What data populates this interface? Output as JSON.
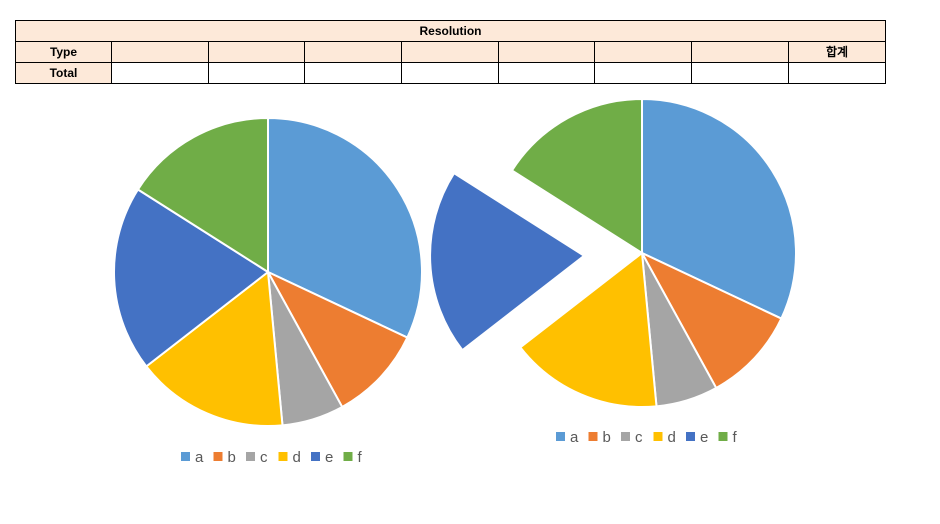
{
  "sheet": {
    "title": "Resolution",
    "type_label": "Type",
    "total_label": "Total",
    "sum_label": "합계"
  },
  "chart_data": [
    {
      "type": "pie",
      "categories": [
        "a",
        "b",
        "c",
        "d",
        "e",
        "f"
      ],
      "values": [
        32,
        10,
        6.5,
        16,
        19.5,
        16
      ],
      "colors": [
        "#5b9bd5",
        "#ed7d31",
        "#a5a5a5",
        "#ffc000",
        "#4472c4",
        "#70ad47"
      ],
      "legend": "bottom",
      "exploded": []
    },
    {
      "type": "pie",
      "categories": [
        "a",
        "b",
        "c",
        "d",
        "e",
        "f"
      ],
      "values": [
        32,
        10,
        6.5,
        16,
        19.5,
        16
      ],
      "colors": [
        "#5b9bd5",
        "#ed7d31",
        "#a5a5a5",
        "#ffc000",
        "#4472c4",
        "#70ad47"
      ],
      "legend": "bottom",
      "exploded": [
        "e"
      ]
    }
  ]
}
